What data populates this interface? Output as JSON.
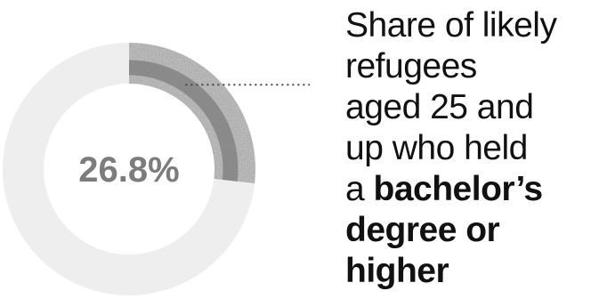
{
  "chart_data": {
    "type": "pie",
    "style": "donut",
    "value_percent": 26.8,
    "value_label": "26.8%",
    "slices": [
      {
        "label": "bachelor's degree or higher",
        "value": 26.8
      },
      {
        "label": "",
        "value": 73.2
      }
    ],
    "title_lines": [
      {
        "text": "Share of likely",
        "bold": ""
      },
      {
        "text": "refugees",
        "bold": ""
      },
      {
        "text": "aged 25 and",
        "bold": ""
      },
      {
        "text": "up who held",
        "bold": ""
      },
      {
        "text": "a ",
        "bold": "bachelor’s"
      },
      {
        "text": "",
        "bold": "degree or"
      },
      {
        "text": "",
        "bold": "higher"
      }
    ],
    "colors": {
      "highlight_arc": "#8a8a8a",
      "highlight_band": "#c2c2c2",
      "remainder_ring": "#eeeeee",
      "value_text": "#7c7c7c",
      "leader_line": "#444444",
      "caption_text": "#111111"
    }
  }
}
